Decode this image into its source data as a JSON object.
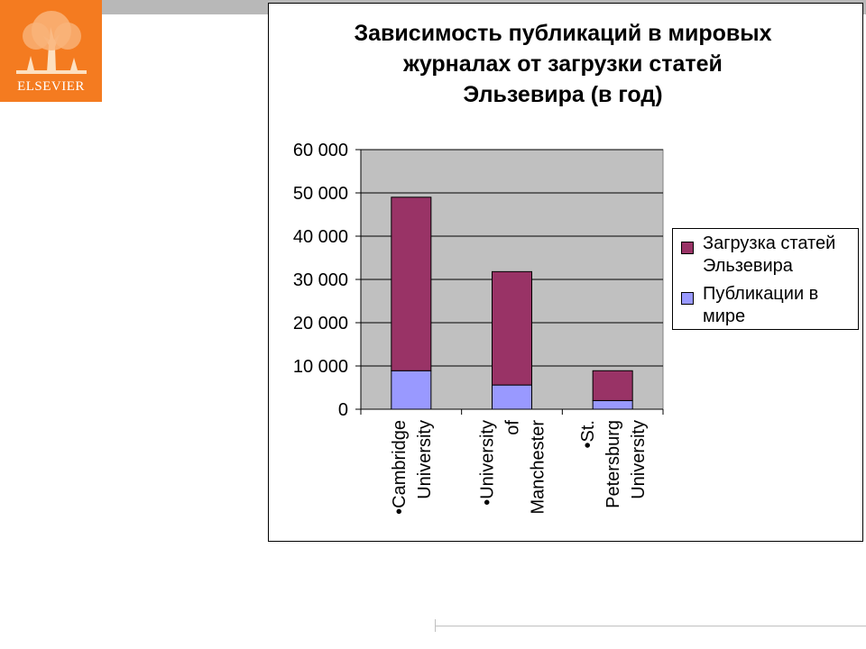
{
  "logo": {
    "text": "ELSEVIER"
  },
  "chart_data": {
    "type": "bar",
    "stacked": true,
    "title": "Зависимость публикаций в мировых журналах от загрузки статей Эльзевира (в год)",
    "title_lines": [
      "Зависимость публикаций в мировых",
      "журналах от загрузки статей",
      "Эльзевира (в год)"
    ],
    "categories": [
      "•Cambridge University",
      "•University of Manchester",
      "•St. Petersburg University"
    ],
    "category_lines": [
      [
        "•Cambridge",
        "University"
      ],
      [
        "•University",
        "of",
        "Manchester"
      ],
      [
        "•St.",
        "Petersburg",
        "University"
      ]
    ],
    "series": [
      {
        "name": "Публикации в мире",
        "name_lines": [
          "Публикации в",
          "мире"
        ],
        "values": [
          8900,
          5600,
          2000
        ],
        "color": "#9999ff"
      },
      {
        "name": "Загрузка статей Эльзевира",
        "name_lines": [
          "Загрузка статей",
          "Эльзевира"
        ],
        "values": [
          40100,
          26200,
          6900
        ],
        "color": "#993366"
      }
    ],
    "ylim": [
      0,
      60000
    ],
    "yticks": [
      0,
      10000,
      20000,
      30000,
      40000,
      50000,
      60000
    ],
    "ytick_labels": [
      "0",
      "10 000",
      "20 000",
      "30 000",
      "40 000",
      "50 000",
      "60 000"
    ],
    "plot_background": "#c0c0c0",
    "grid": true,
    "legend_position": "right"
  }
}
